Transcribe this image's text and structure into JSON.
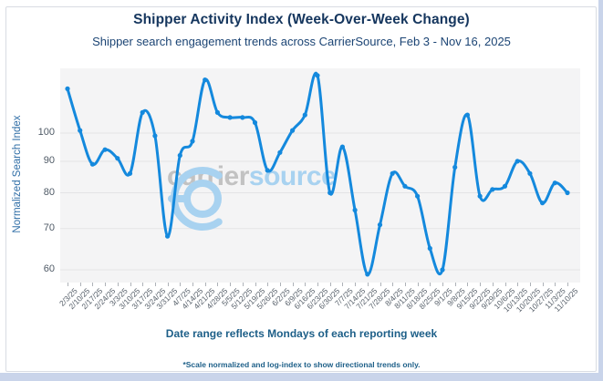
{
  "chart_data": {
    "type": "line",
    "title": "Shipper Activity Index (Week-Over-Week Change)",
    "subtitle": "Shipper search engagement trends across CarrierSource, Feb 3 - Nov 16, 2025",
    "series_name": "Shipper Activity Index",
    "ylabel": "Normalized Search Index",
    "x_caption": "Date range reflects Mondays of each reporting week",
    "footnote": "*Scale normalized and log-index to show directional trends only.",
    "y_ticks": [
      100,
      90,
      80,
      70,
      60
    ],
    "ylim": [
      57,
      126
    ],
    "y_scale": "log",
    "grid": "horizontal",
    "legend": "none",
    "marker": "circle",
    "categories": [
      "2/3/25",
      "2/10/25",
      "2/17/25",
      "2/24/25",
      "3/3/25",
      "3/10/25",
      "3/17/25",
      "3/24/25",
      "3/31/25",
      "4/7/25",
      "4/14/25",
      "4/21/25",
      "4/28/25",
      "5/5/25",
      "5/12/25",
      "5/19/25",
      "5/26/25",
      "6/2/25",
      "6/9/25",
      "6/16/25",
      "6/23/25",
      "6/30/25",
      "7/7/25",
      "7/14/25",
      "7/21/25",
      "7/28/25",
      "8/4/25",
      "8/11/25",
      "8/18/25",
      "8/25/25",
      "9/1/25",
      "9/8/25",
      "9/15/25",
      "9/22/25",
      "9/29/25",
      "10/6/25",
      "10/13/25",
      "10/20/25",
      "10/27/25",
      "11/3/25",
      "11/10/25"
    ],
    "values": [
      118,
      101,
      89,
      94,
      91,
      86,
      108,
      99,
      68,
      92,
      97,
      122,
      108,
      106,
      106,
      104,
      87,
      93,
      101,
      107,
      124,
      80,
      95,
      75,
      59,
      71,
      86,
      82,
      79,
      65,
      60,
      88,
      107,
      79,
      81,
      82,
      90,
      86,
      77,
      83,
      80
    ]
  },
  "watermark": {
    "logo": "carriersource-ring-logo",
    "word_gray": "carrier",
    "word_blue": "source"
  },
  "colors": {
    "line": "#1489dd",
    "title_text": "#15365e",
    "caption_text": "#1d5f88",
    "y_axis_title": "#2e6da6",
    "tick_text": "#59626c",
    "plot_bg": "#f4f4f5",
    "gridline": "#e3e3e5",
    "watermark_gray": "#c2c2c2",
    "watermark_blue": "#a8d2f0",
    "frame_strip": "#c9d4ea",
    "card_border": "#d8dce3"
  }
}
